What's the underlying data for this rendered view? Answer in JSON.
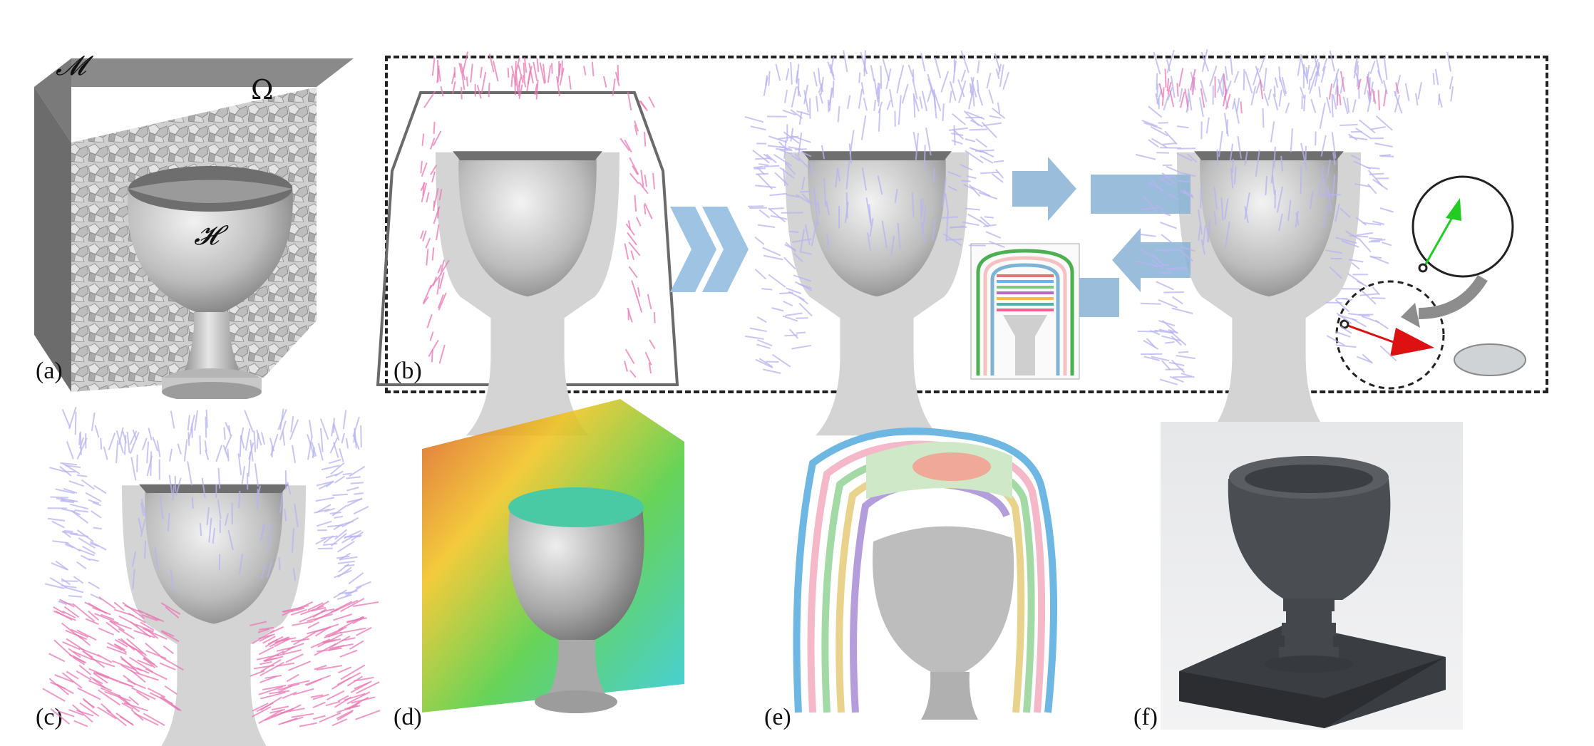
{
  "labels": {
    "a": "(a)",
    "b": "(b)",
    "c": "(c)",
    "d": "(d)",
    "e": "(e)",
    "f": "(f)"
  },
  "symbols": {
    "mold": "𝓜",
    "domain": "Ω",
    "hollow": "𝓗"
  },
  "colors": {
    "mold_gray": "#7a7a7a",
    "cup_gray": "#d2d2d2",
    "field_pink": "#e87ab4",
    "field_lavender": "#b8b4f0",
    "arrow_blue": "#8fb6d8",
    "frame_line": "#6a6a6a",
    "dash": "#222222",
    "vec_green": "#22cc22",
    "vec_red": "#dd1111"
  }
}
